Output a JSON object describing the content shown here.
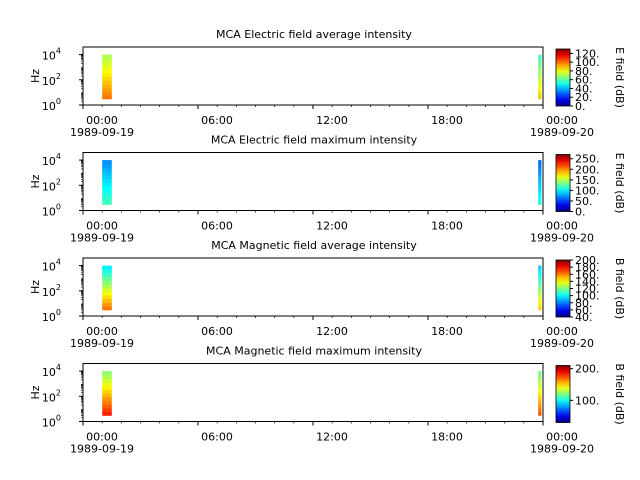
{
  "chart_data": [
    {
      "type": "heatmap",
      "title": "MCA  Electric field average intensity",
      "ylabel": "Hz",
      "y_scale": "log",
      "y_ticks": [
        {
          "base": "10",
          "exp": "0"
        },
        {
          "base": "10",
          "exp": "2"
        },
        {
          "base": "10",
          "exp": "4"
        }
      ],
      "x_ticks": [
        {
          "time": "00:00",
          "date": "1989-09-19"
        },
        {
          "time": "06:00",
          "date": ""
        },
        {
          "time": "12:00",
          "date": ""
        },
        {
          "time": "18:00",
          "date": ""
        },
        {
          "time": "00:00",
          "date": "1989-09-20"
        }
      ],
      "colorbar": {
        "label": "E field (dB)",
        "min": 0,
        "max": 130,
        "ticks": [
          "0.",
          "20.",
          "40.",
          "60.",
          "80.",
          "100.",
          "120."
        ]
      },
      "data_intervals": [
        {
          "start": "1989-09-19 01:00",
          "end": "1989-09-19 01:30",
          "freq_range_hz": [
            3,
            10000
          ],
          "intensity_db_low_freq": 100,
          "intensity_db_high_freq": 70
        },
        {
          "start": "1989-09-19 23:45",
          "end": "1989-09-19 23:55",
          "freq_range_hz": [
            3,
            10000
          ],
          "intensity_db_low_freq": 90,
          "intensity_db_high_freq": 55
        }
      ]
    },
    {
      "type": "heatmap",
      "title": "MCA  Electric field maximum intensity",
      "ylabel": "Hz",
      "y_scale": "log",
      "y_ticks": [
        {
          "base": "10",
          "exp": "0"
        },
        {
          "base": "10",
          "exp": "2"
        },
        {
          "base": "10",
          "exp": "4"
        }
      ],
      "x_ticks": [
        {
          "time": "00:00",
          "date": "1989-09-19"
        },
        {
          "time": "06:00",
          "date": ""
        },
        {
          "time": "12:00",
          "date": ""
        },
        {
          "time": "18:00",
          "date": ""
        },
        {
          "time": "00:00",
          "date": "1989-09-20"
        }
      ],
      "colorbar": {
        "label": "E field (dB)",
        "min": 0,
        "max": 270,
        "ticks": [
          "0.",
          "50.",
          "100.",
          "150.",
          "200.",
          "250."
        ]
      },
      "data_intervals": [
        {
          "start": "1989-09-19 01:00",
          "end": "1989-09-19 01:30",
          "freq_range_hz": [
            3,
            10000
          ],
          "intensity_db_low_freq": 120,
          "intensity_db_high_freq": 70
        },
        {
          "start": "1989-09-19 23:45",
          "end": "1989-09-19 23:55",
          "freq_range_hz": [
            3,
            10000
          ],
          "intensity_db_low_freq": 110,
          "intensity_db_high_freq": 60
        }
      ]
    },
    {
      "type": "heatmap",
      "title": "MCA  Magnetic field average intensity",
      "ylabel": "Hz",
      "y_scale": "log",
      "y_ticks": [
        {
          "base": "10",
          "exp": "0"
        },
        {
          "base": "10",
          "exp": "2"
        },
        {
          "base": "10",
          "exp": "4"
        }
      ],
      "x_ticks": [
        {
          "time": "00:00",
          "date": "1989-09-19"
        },
        {
          "time": "06:00",
          "date": ""
        },
        {
          "time": "12:00",
          "date": ""
        },
        {
          "time": "18:00",
          "date": ""
        },
        {
          "time": "00:00",
          "date": "1989-09-20"
        }
      ],
      "colorbar": {
        "label": "B field (dB)",
        "min": 40,
        "max": 200,
        "ticks": [
          "40.",
          "60.",
          "80.",
          "100.",
          "120.",
          "140.",
          "160.",
          "180.",
          "200."
        ]
      },
      "data_intervals": [
        {
          "start": "1989-09-19 01:00",
          "end": "1989-09-19 01:30",
          "freq_range_hz": [
            3,
            10000
          ],
          "intensity_db_low_freq": 165,
          "intensity_db_high_freq": 95
        },
        {
          "start": "1989-09-19 23:45",
          "end": "1989-09-19 23:55",
          "freq_range_hz": [
            3,
            10000
          ],
          "intensity_db_low_freq": 150,
          "intensity_db_high_freq": 90
        }
      ]
    },
    {
      "type": "heatmap",
      "title": "MCA  Magnetic field maximum intensity",
      "ylabel": "Hz",
      "y_scale": "log",
      "y_ticks": [
        {
          "base": "10",
          "exp": "0"
        },
        {
          "base": "10",
          "exp": "2"
        },
        {
          "base": "10",
          "exp": "4"
        }
      ],
      "x_ticks": [
        {
          "time": "00:00",
          "date": "1989-09-19"
        },
        {
          "time": "06:00",
          "date": ""
        },
        {
          "time": "12:00",
          "date": ""
        },
        {
          "time": "18:00",
          "date": ""
        },
        {
          "time": "00:00",
          "date": "1989-09-20"
        }
      ],
      "colorbar": {
        "label": "B field (dB)",
        "min": 30,
        "max": 210,
        "ticks": [
          "100.",
          "200."
        ]
      },
      "data_intervals": [
        {
          "start": "1989-09-19 01:00",
          "end": "1989-09-19 01:30",
          "freq_range_hz": [
            3,
            10000
          ],
          "intensity_db_low_freq": 185,
          "intensity_db_high_freq": 120
        },
        {
          "start": "1989-09-19 23:45",
          "end": "1989-09-19 23:55",
          "freq_range_hz": [
            3,
            10000
          ],
          "intensity_db_low_freq": 175,
          "intensity_db_high_freq": 115
        }
      ]
    }
  ]
}
